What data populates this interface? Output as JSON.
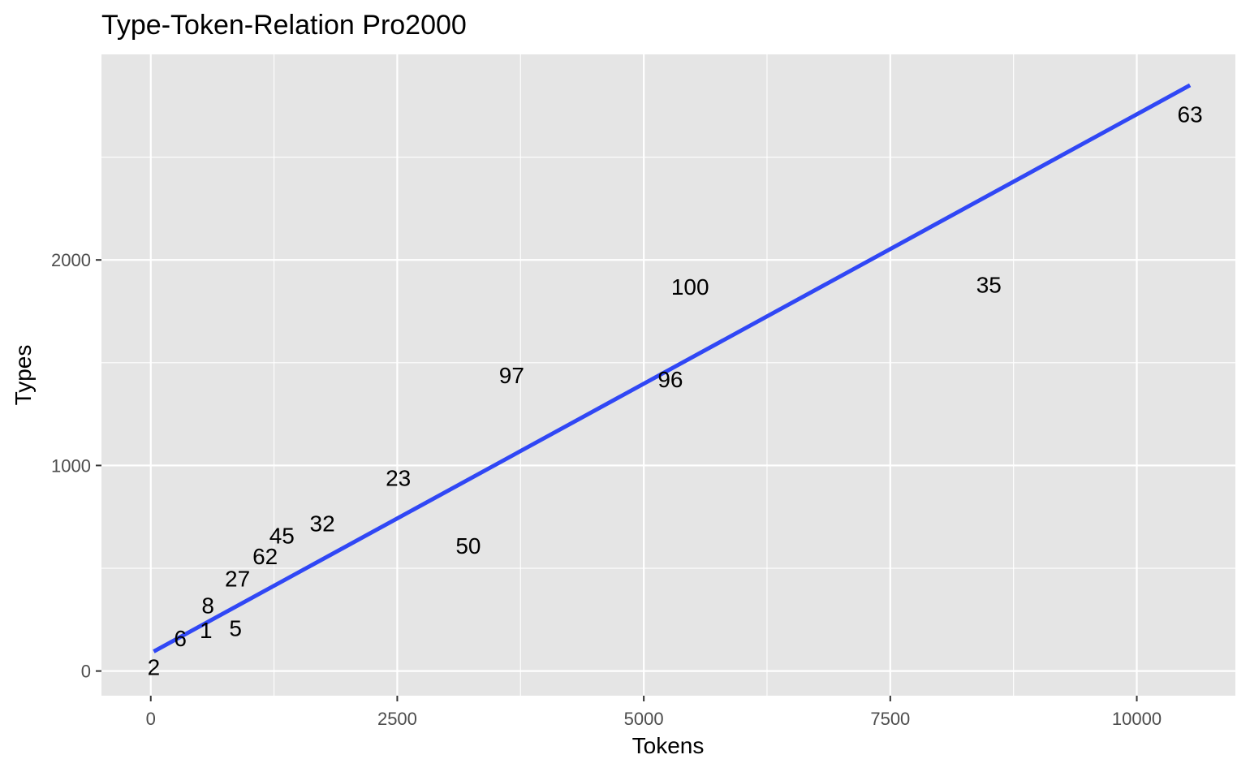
{
  "chart_data": {
    "type": "scatter",
    "title": "Type-Token-Relation Pro2000",
    "xlabel": "Tokens",
    "ylabel": "Types",
    "xlim": [
      -500,
      11000
    ],
    "ylim": [
      -120,
      3000
    ],
    "x_ticks": [
      0,
      2500,
      5000,
      7500,
      10000
    ],
    "x_tick_labels": [
      "0",
      "2500",
      "5000",
      "7500",
      "10000"
    ],
    "y_ticks": [
      0,
      1000,
      2000
    ],
    "y_tick_labels": [
      "0",
      "1000",
      "2000"
    ],
    "x_minor_ticks": [
      1250,
      3750,
      6250,
      8750
    ],
    "y_minor_ticks": [
      500,
      1500,
      2500
    ],
    "grid": true,
    "legend": "none",
    "points": [
      {
        "label": "2",
        "x": 30,
        "y": 20
      },
      {
        "label": "6",
        "x": 300,
        "y": 160
      },
      {
        "label": "1",
        "x": 560,
        "y": 200
      },
      {
        "label": "5",
        "x": 860,
        "y": 210
      },
      {
        "label": "8",
        "x": 580,
        "y": 320
      },
      {
        "label": "27",
        "x": 880,
        "y": 450
      },
      {
        "label": "62",
        "x": 1160,
        "y": 560
      },
      {
        "label": "45",
        "x": 1330,
        "y": 660
      },
      {
        "label": "32",
        "x": 1740,
        "y": 720
      },
      {
        "label": "23",
        "x": 2510,
        "y": 940
      },
      {
        "label": "50",
        "x": 3220,
        "y": 610
      },
      {
        "label": "97",
        "x": 3660,
        "y": 1440
      },
      {
        "label": "96",
        "x": 5270,
        "y": 1420
      },
      {
        "label": "100",
        "x": 5470,
        "y": 1870
      },
      {
        "label": "35",
        "x": 8500,
        "y": 1880
      },
      {
        "label": "63",
        "x": 10540,
        "y": 2710
      }
    ],
    "trend_line": {
      "method": "linear",
      "x": [
        30,
        10540
      ],
      "y": [
        95,
        2850
      ]
    },
    "colors": {
      "panel": "#e5e5e5",
      "grid": "#ffffff",
      "trend_line": "#3047f5",
      "text": "#000000",
      "tick_text": "#4d4d4d"
    }
  }
}
